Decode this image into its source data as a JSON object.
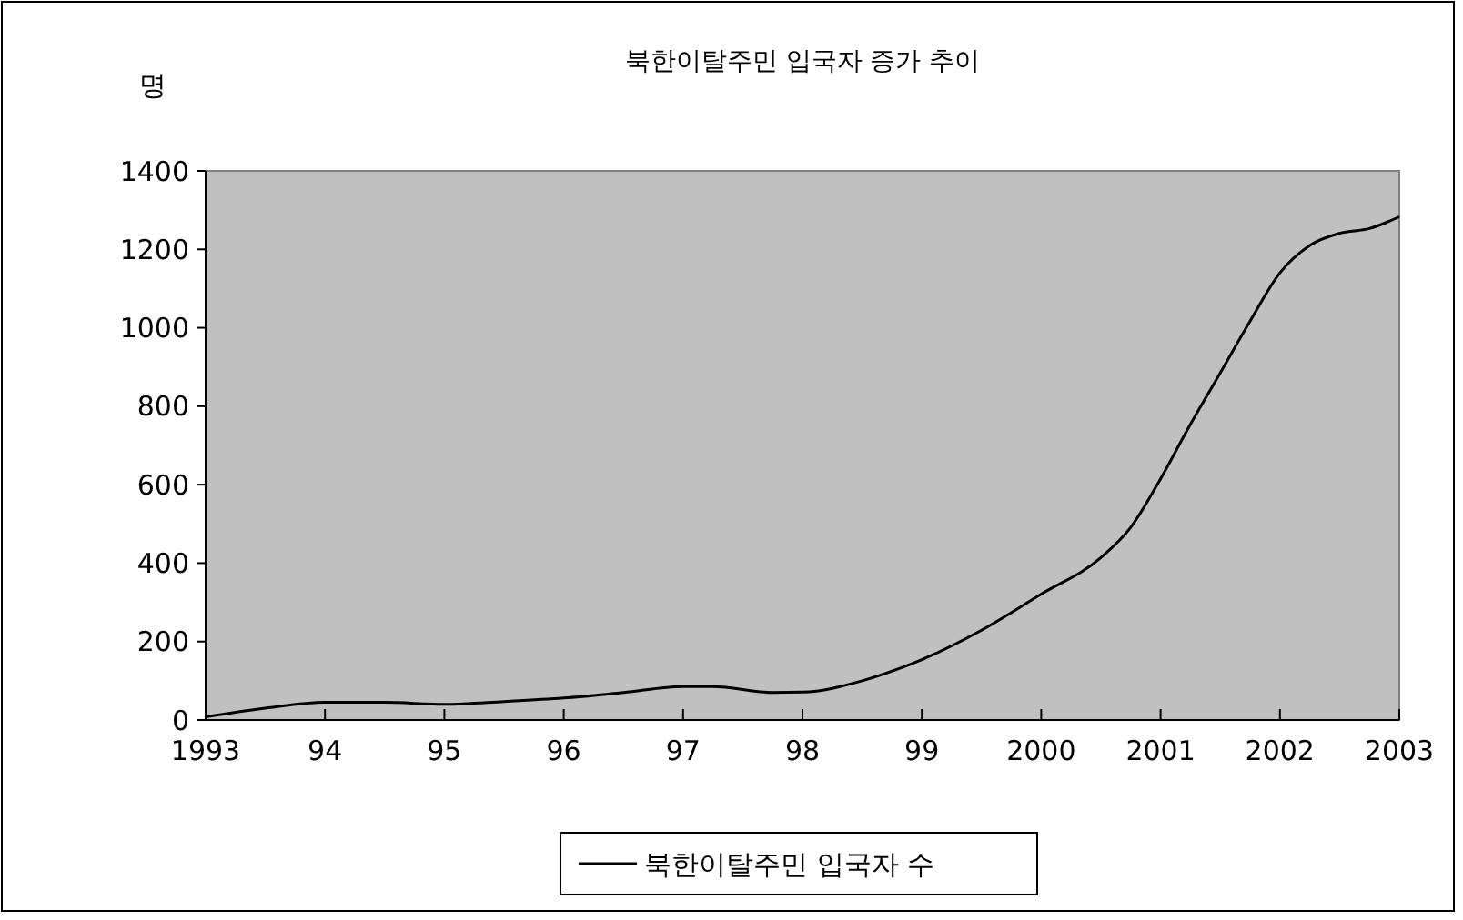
{
  "chart_data": {
    "type": "line",
    "title": "북한이탈주민 입국자 증가 추이",
    "ylabel": "명",
    "x": [
      1993,
      1993.5,
      1994,
      1994.5,
      1995,
      1995.5,
      1996,
      1996.5,
      1997,
      1997.25,
      1997.75,
      1998,
      1998.5,
      1998.8,
      1999,
      1999.5,
      2000,
      2000.5,
      2000.75,
      2001,
      2001.25,
      2001.5,
      2001.75,
      2002,
      2002.25,
      2002.5,
      2002.75,
      2003
    ],
    "series": [
      {
        "name": "북한이탈주민 입국자 수",
        "color": "#000000",
        "values": [
          8,
          30,
          45,
          45,
          40,
          47,
          56,
          70,
          85,
          85,
          70,
          71,
          100,
          130,
          154,
          229,
          321,
          414,
          491,
          615,
          754,
          885,
          1017,
          1140,
          1210,
          1241,
          1253,
          1283
        ]
      }
    ],
    "xlim": [
      1993,
      2003
    ],
    "xticks": [
      {
        "value": 1993,
        "label": "1993"
      },
      {
        "value": 1994,
        "label": "94"
      },
      {
        "value": 1995,
        "label": "95"
      },
      {
        "value": 1996,
        "label": "96"
      },
      {
        "value": 1997,
        "label": "97"
      },
      {
        "value": 1998,
        "label": "98"
      },
      {
        "value": 1999,
        "label": "99"
      },
      {
        "value": 2000,
        "label": "2000"
      },
      {
        "value": 2001,
        "label": "2001"
      },
      {
        "value": 2002,
        "label": "2002"
      },
      {
        "value": 2003,
        "label": "2003"
      }
    ],
    "ylim": [
      0,
      1400
    ],
    "yticks": [
      0,
      200,
      400,
      600,
      800,
      1000,
      1200,
      1400
    ],
    "grid": false,
    "legend": "bottom",
    "marker": "none",
    "line_style": "solid"
  }
}
